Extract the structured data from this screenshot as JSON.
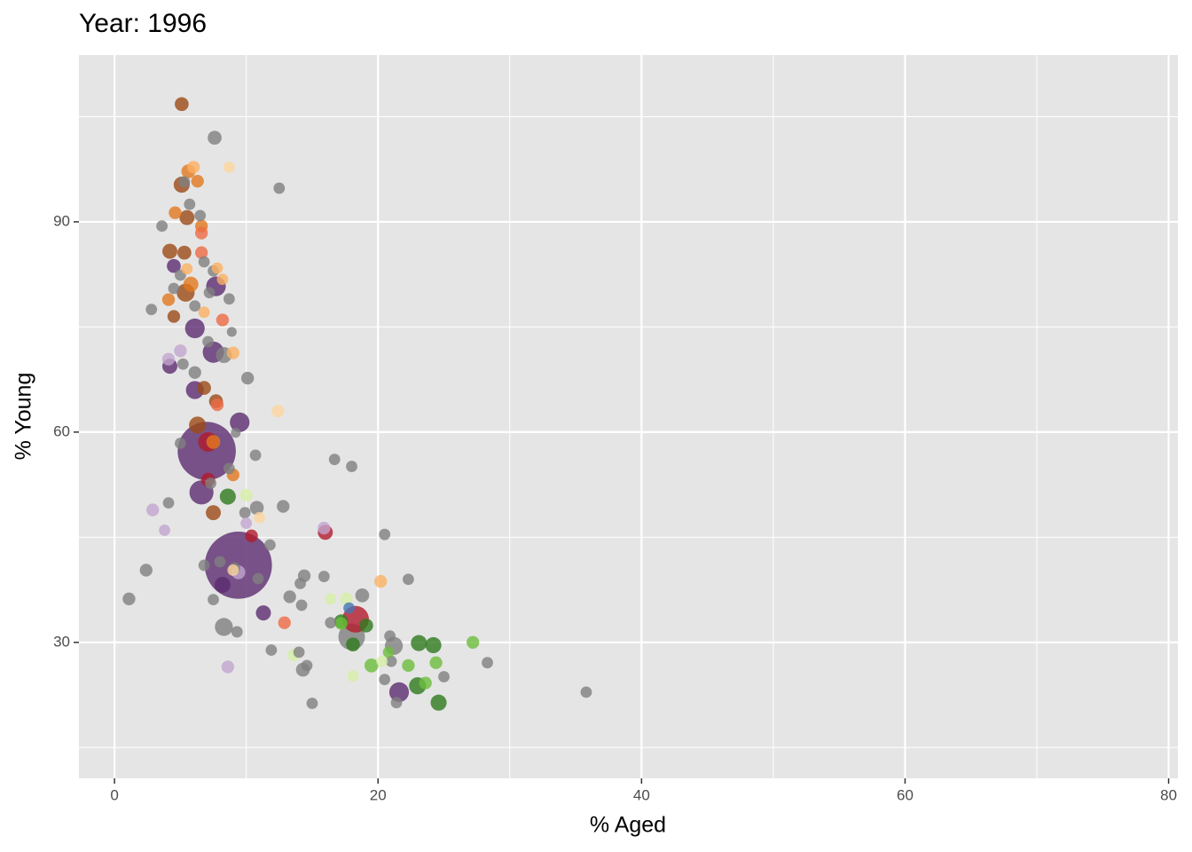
{
  "chart_data": {
    "type": "scatter",
    "title": "Year: 1996",
    "x_label": "% Aged",
    "y_label": "% Young",
    "xlim": [
      -2.7,
      80.7
    ],
    "ylim": [
      10.6,
      113.8
    ],
    "xticks": [
      0,
      20,
      40,
      60,
      80
    ],
    "yticks": [
      30,
      60,
      90
    ],
    "xminorticks": [
      10,
      30,
      50,
      70
    ],
    "yminorticks": [
      15,
      45,
      75,
      105
    ],
    "grid": true,
    "opacity": 0.8,
    "series": [
      {
        "color": "#7f7f7f",
        "x": [
          7.6,
          12.5,
          3.6,
          2.8,
          8.7,
          8.9,
          8.3,
          10.1,
          9.2,
          10.7,
          16.7,
          18.0,
          4.1,
          12.8,
          10.8,
          9.9,
          20.5,
          11.8,
          2.4,
          1.1,
          6.8,
          14.4,
          15.9,
          22.3,
          14.1,
          10.9,
          13.3,
          7.5,
          14.2,
          18.8,
          8.3,
          9.3,
          16.4,
          18.0,
          20.9,
          21.2,
          11.9,
          14.0,
          21.0,
          14.6,
          14.3,
          28.3,
          25.0,
          20.5,
          21.4,
          15.0,
          35.8,
          5.3,
          6.5,
          5.7,
          6.8,
          7.5,
          7.2,
          5.0,
          4.5,
          6.1,
          7.1,
          5.2,
          6.1,
          5.0,
          8.7,
          7.3,
          8.0,
          9.1
        ],
        "values": [
          102.0,
          94.8,
          89.4,
          77.5,
          79.0,
          74.3,
          71.0,
          67.7,
          59.9,
          56.7,
          56.1,
          55.1,
          49.9,
          49.4,
          49.2,
          48.5,
          45.4,
          43.9,
          40.3,
          36.2,
          41.0,
          39.5,
          39.4,
          39.0,
          38.4,
          39.1,
          36.5,
          36.1,
          35.3,
          36.7,
          32.2,
          31.5,
          32.8,
          30.8,
          30.9,
          29.5,
          28.9,
          28.6,
          27.3,
          26.7,
          26.1,
          27.1,
          25.1,
          24.7,
          21.4,
          21.3,
          22.9,
          95.7,
          90.9,
          92.5,
          84.3,
          83.0,
          79.9,
          82.4,
          80.5,
          78.0,
          72.9,
          69.7,
          68.5,
          58.4,
          54.8,
          52.7,
          41.5,
          40.6
        ],
        "sizes": [
          6,
          4,
          4,
          4,
          4,
          3,
          8,
          5,
          3,
          4,
          4,
          4,
          4,
          5,
          6,
          4,
          4,
          4,
          5,
          5,
          4,
          5,
          4,
          4,
          4,
          4,
          5,
          4,
          4,
          6,
          10,
          4,
          4,
          22,
          4,
          10,
          4,
          4,
          4,
          4,
          6,
          4,
          4,
          4,
          4,
          4,
          4,
          4,
          4,
          4,
          4,
          4,
          4,
          4,
          4,
          4,
          4,
          4,
          5,
          4,
          4,
          4,
          4,
          4
        ]
      },
      {
        "color": "#5b2c6f",
        "x": [
          7.0,
          9.4,
          6.6,
          7.5,
          7.7,
          6.1,
          6.1,
          9.5,
          4.5,
          4.2,
          8.2,
          11.3,
          21.6
        ],
        "values": [
          57.3,
          41.0,
          51.4,
          71.4,
          80.8,
          66.0,
          74.8,
          61.4,
          83.7,
          69.4,
          38.2,
          34.2,
          22.9
        ],
        "sizes": [
          105,
          140,
          18,
          14,
          12,
          10,
          12,
          12,
          6,
          7,
          8,
          7,
          12
        ]
      },
      {
        "color": "#c2a5cf",
        "x": [
          2.9,
          3.8,
          8.6,
          5.0,
          4.1,
          15.9,
          9.4,
          10.0
        ],
        "values": [
          48.9,
          46.0,
          26.5,
          71.6,
          70.4,
          46.3,
          40.0,
          47.0
        ],
        "sizes": [
          5,
          4,
          5,
          5,
          5,
          5,
          6,
          4
        ]
      },
      {
        "color": "#9c4a17",
        "x": [
          5.1,
          5.1,
          5.5,
          4.2,
          5.3,
          5.4,
          4.5,
          6.3,
          7.5,
          6.8,
          7.7
        ],
        "values": [
          106.8,
          95.3,
          90.6,
          85.8,
          85.6,
          79.9,
          76.5,
          61.0,
          48.5,
          66.3,
          64.4
        ],
        "sizes": [
          6,
          8,
          7,
          7,
          6,
          10,
          5,
          9,
          7,
          6,
          6
        ]
      },
      {
        "color": "#e2781e",
        "x": [
          5.6,
          6.3,
          4.6,
          6.6,
          9.0,
          7.5,
          5.8,
          4.1
        ],
        "values": [
          97.2,
          95.8,
          91.3,
          89.4,
          53.9,
          58.6,
          81.1,
          78.9
        ],
        "sizes": [
          6,
          5,
          5,
          5,
          5,
          6,
          7,
          5
        ]
      },
      {
        "color": "#fbb063",
        "x": [
          6.0,
          5.5,
          7.8,
          9.0,
          6.8,
          20.2,
          8.2
        ],
        "values": [
          97.8,
          83.3,
          83.4,
          71.3,
          77.1,
          38.7,
          81.8
        ],
        "sizes": [
          5,
          4,
          4,
          5,
          4,
          5,
          4
        ]
      },
      {
        "color": "#fcd6a0",
        "x": [
          8.7,
          12.4,
          11.0,
          9.0
        ],
        "values": [
          97.8,
          63.0,
          47.8,
          40.3
        ],
        "sizes": [
          4,
          5,
          4,
          4
        ]
      },
      {
        "color": "#b11a2c",
        "x": [
          18.3,
          7.1,
          7.1,
          16.0,
          10.4
        ],
        "values": [
          33.3,
          58.6,
          53.2,
          45.7,
          45.2
        ],
        "sizes": [
          22,
          12,
          6,
          7,
          5
        ]
      },
      {
        "color": "#ee6a45",
        "x": [
          8.2,
          7.8,
          12.9,
          6.6,
          6.6
        ],
        "values": [
          76.0,
          63.9,
          32.8,
          88.4,
          85.6
        ],
        "sizes": [
          5,
          5,
          5,
          5,
          5
        ]
      },
      {
        "color": "#2e7a1e",
        "x": [
          8.6,
          23.1,
          24.2,
          24.6,
          23.0,
          17.2,
          18.1,
          19.1
        ],
        "values": [
          50.8,
          29.9,
          29.6,
          21.4,
          23.8,
          33.0,
          29.7,
          32.4
        ],
        "sizes": [
          8,
          8,
          8,
          8,
          9,
          6,
          6,
          6
        ]
      },
      {
        "color": "#6dbd3c",
        "x": [
          27.2,
          24.4,
          19.5,
          22.3,
          23.6,
          17.2,
          20.8
        ],
        "values": [
          30.0,
          27.1,
          26.7,
          26.7,
          24.2,
          32.7,
          28.6
        ],
        "sizes": [
          5,
          5,
          6,
          5,
          5,
          5,
          4
        ]
      },
      {
        "color": "#d6efa8",
        "x": [
          10.0,
          13.6,
          18.1,
          16.4,
          17.6,
          20.3
        ],
        "values": [
          51.0,
          28.2,
          25.2,
          36.2,
          36.2,
          27.3
        ],
        "sizes": [
          5,
          5,
          4,
          4,
          5,
          4
        ]
      },
      {
        "color": "#4575b4",
        "x": [
          17.8
        ],
        "values": [
          34.9
        ],
        "sizes": [
          4
        ]
      }
    ]
  }
}
